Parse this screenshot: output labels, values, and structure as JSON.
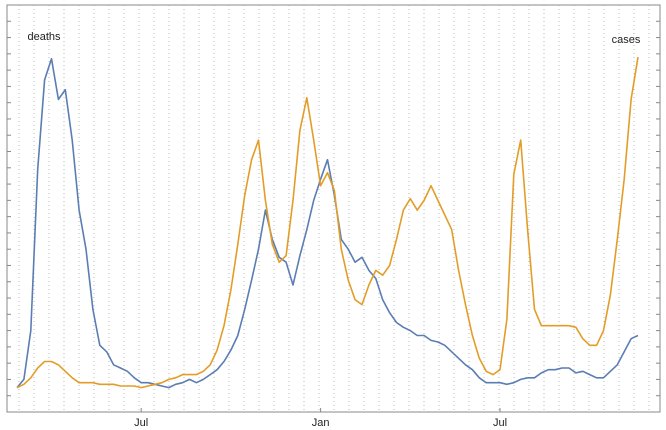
{
  "chart_data": {
    "type": "line",
    "categories": [
      null,
      null,
      null,
      null,
      null,
      null,
      null,
      null,
      null,
      null,
      null,
      null,
      null,
      null,
      null,
      null,
      null,
      null,
      "Jul",
      null,
      null,
      null,
      null,
      null,
      null,
      null,
      null,
      null,
      null,
      null,
      null,
      null,
      null,
      null,
      null,
      null,
      null,
      null,
      null,
      null,
      null,
      null,
      null,
      null,
      "Jan",
      null,
      null,
      null,
      null,
      null,
      null,
      null,
      null,
      null,
      null,
      null,
      null,
      null,
      null,
      null,
      null,
      null,
      null,
      null,
      null,
      null,
      null,
      null,
      null,
      null,
      "Jul",
      null,
      null,
      null,
      null,
      null,
      null,
      null,
      null,
      null,
      null,
      null,
      null,
      null,
      null,
      null,
      null,
      null,
      null,
      null,
      null
    ],
    "series": [
      {
        "name": "deaths",
        "color": "#5a7db3",
        "values": [
          1.5,
          2.0,
          5.0,
          14.9,
          20.4,
          21.7,
          19.2,
          19.8,
          16.7,
          12.4,
          10.0,
          6.3,
          4.1,
          3.7,
          2.9,
          2.7,
          2.5,
          2.1,
          1.8,
          1.8,
          1.7,
          1.6,
          1.5,
          1.7,
          1.8,
          2.0,
          1.8,
          2.0,
          2.3,
          2.6,
          3.1,
          3.8,
          4.7,
          6.3,
          8.1,
          10.0,
          12.4,
          10.6,
          9.5,
          9.2,
          7.8,
          9.6,
          11.2,
          13.0,
          14.3,
          15.5,
          13.3,
          10.6,
          10.0,
          9.2,
          9.5,
          8.7,
          8.2,
          6.9,
          6.1,
          5.5,
          5.2,
          5.0,
          4.7,
          4.7,
          4.4,
          4.3,
          4.1,
          3.7,
          3.3,
          2.9,
          2.6,
          2.1,
          1.8,
          1.8,
          1.8,
          1.7,
          1.8,
          2.0,
          2.1,
          2.1,
          2.4,
          2.6,
          2.6,
          2.7,
          2.7,
          2.4,
          2.5,
          2.3,
          2.1,
          2.1,
          2.5,
          2.9,
          3.7,
          4.5,
          4.7
        ]
      },
      {
        "name": "cases",
        "color": "#e39d27",
        "values": [
          1.5,
          1.7,
          2.1,
          2.7,
          3.1,
          3.1,
          2.9,
          2.5,
          2.1,
          1.8,
          1.8,
          1.8,
          1.7,
          1.7,
          1.7,
          1.6,
          1.6,
          1.6,
          1.5,
          1.6,
          1.7,
          1.8,
          2.0,
          2.1,
          2.3,
          2.3,
          2.3,
          2.5,
          2.9,
          3.8,
          5.3,
          7.5,
          10.3,
          13.3,
          15.5,
          16.7,
          13.0,
          10.3,
          9.2,
          9.6,
          13.0,
          17.3,
          19.3,
          16.7,
          13.9,
          14.7,
          13.6,
          10.0,
          8.1,
          6.9,
          6.6,
          7.8,
          8.7,
          8.4,
          9.0,
          10.6,
          12.4,
          13.1,
          12.4,
          13.0,
          13.9,
          13.0,
          12.1,
          11.2,
          8.7,
          6.6,
          4.7,
          3.3,
          2.5,
          2.3,
          2.6,
          5.7,
          14.6,
          16.7,
          11.2,
          6.3,
          5.3,
          5.3,
          5.3,
          5.3,
          5.3,
          5.2,
          4.5,
          4.1,
          4.1,
          5.0,
          7.2,
          10.6,
          14.3,
          19.2,
          21.8
        ]
      }
    ],
    "ylim": [
      0,
      25
    ],
    "yticks": [
      1,
      2,
      3,
      4,
      5,
      6,
      7,
      8,
      9,
      10,
      11,
      12,
      13,
      14,
      15,
      16,
      17,
      18,
      19,
      20,
      21,
      22,
      23,
      24
    ]
  }
}
